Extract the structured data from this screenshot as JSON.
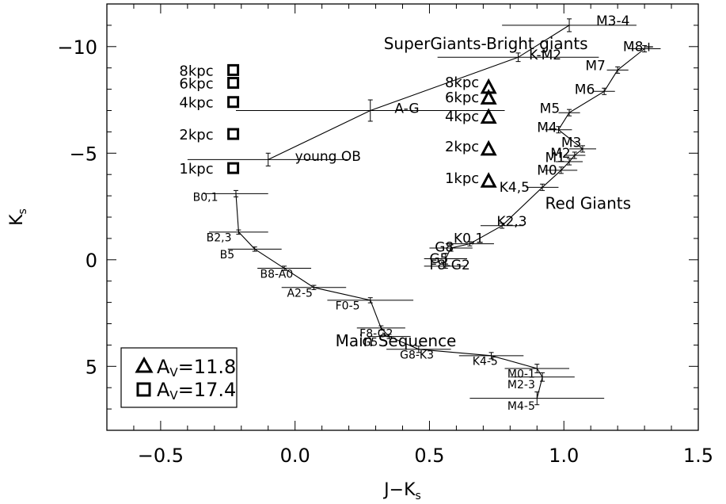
{
  "chart_data": {
    "type": "scatter",
    "xlabel_main": "J−K",
    "xlabel_sub": "s",
    "ylabel_main": "K",
    "ylabel_sub": "s",
    "xlim": [
      -0.7,
      1.5
    ],
    "ylim": [
      8.0,
      -12.0
    ],
    "x_ticks": [
      {
        "v": -0.5,
        "t": "−0.5"
      },
      {
        "v": 0.0,
        "t": "0.0"
      },
      {
        "v": 0.5,
        "t": "0.5"
      },
      {
        "v": 1.0,
        "t": "1.0"
      },
      {
        "v": 1.5,
        "t": "1.5"
      }
    ],
    "y_ticks": [
      {
        "v": -10,
        "t": "−10"
      },
      {
        "v": -5,
        "t": "−5"
      },
      {
        "v": 0,
        "t": "0"
      },
      {
        "v": 5,
        "t": "5"
      }
    ],
    "series": [
      {
        "name": "Main Sequence",
        "label_pos": [
          0.15,
          3.8
        ],
        "points": [
          {
            "label": "B0,1",
            "x": -0.22,
            "y": -3.1,
            "xerr": 0.12,
            "yerr": 0.15,
            "lx": -0.38,
            "ly": -2.95
          },
          {
            "label": "B2,3",
            "x": -0.21,
            "y": -1.3,
            "xerr": 0.11,
            "yerr": 0.1,
            "lx": -0.33,
            "ly": -1.05
          },
          {
            "label": "B5",
            "x": -0.15,
            "y": -0.5,
            "xerr": 0.1,
            "yerr": 0.1,
            "lx": -0.28,
            "ly": -0.25
          },
          {
            "label": "B8-A0",
            "x": -0.04,
            "y": 0.4,
            "xerr": 0.1,
            "yerr": 0.1,
            "lx": -0.13,
            "ly": 0.65
          },
          {
            "label": "A2-5",
            "x": 0.07,
            "y": 1.3,
            "xerr": 0.12,
            "yerr": 0.1,
            "lx": -0.03,
            "ly": 1.55
          },
          {
            "label": "F0-5",
            "x": 0.28,
            "y": 1.9,
            "xerr": 0.16,
            "yerr": 0.12,
            "lx": 0.15,
            "ly": 2.15
          },
          {
            "label": "F8-G2",
            "x": 0.32,
            "y": 3.2,
            "xerr": 0.09,
            "yerr": 0.1,
            "lx": 0.24,
            "ly": 3.45
          },
          {
            "label": "G5",
            "x": 0.35,
            "y": 3.6,
            "xerr": 0.08,
            "yerr": 0.1,
            "lx": 0.25,
            "ly": 3.85
          },
          {
            "label": "G8-K3",
            "x": 0.46,
            "y": 4.2,
            "xerr": 0.12,
            "yerr": 0.15,
            "lx": 0.39,
            "ly": 4.45
          },
          {
            "label": "K4-5",
            "x": 0.73,
            "y": 4.5,
            "xerr": 0.12,
            "yerr": 0.15,
            "lx": 0.66,
            "ly": 4.75
          },
          {
            "label": "M0-1",
            "x": 0.9,
            "y": 5.1,
            "xerr": 0.12,
            "yerr": 0.2,
            "lx": 0.79,
            "ly": 5.35
          },
          {
            "label": "M2-3",
            "x": 0.92,
            "y": 5.5,
            "xerr": 0.12,
            "yerr": 0.2,
            "lx": 0.79,
            "ly": 5.85
          },
          {
            "label": "M4-5",
            "x": 0.9,
            "y": 6.5,
            "xerr": 0.25,
            "yerr": 0.3,
            "lx": 0.79,
            "ly": 6.85
          }
        ]
      },
      {
        "name": "Red Giants",
        "label_pos": [
          0.93,
          -2.65
        ],
        "points": [
          {
            "label": "F8-G2",
            "x": 0.56,
            "y": 0.3,
            "xerr": 0.08,
            "yerr": 0.1,
            "lx": 0.5,
            "ly": 0.2
          },
          {
            "label": "G5",
            "x": 0.56,
            "y": -0.05,
            "xerr": 0.08,
            "yerr": 0.25,
            "lx": 0.5,
            "ly": -0.1
          },
          {
            "label": "G8",
            "x": 0.58,
            "y": -0.55,
            "xerr": 0.08,
            "yerr": 0.15,
            "lx": 0.52,
            "ly": -0.65
          },
          {
            "label": "K0,1",
            "x": 0.65,
            "y": -0.75,
            "xerr": 0.09,
            "yerr": 0.1,
            "lx": 0.59,
            "ly": -1.05
          },
          {
            "label": "K2,3",
            "x": 0.77,
            "y": -1.6,
            "xerr": 0.08,
            "yerr": 0.12,
            "lx": 0.75,
            "ly": -1.85
          },
          {
            "label": "K4,5",
            "x": 0.92,
            "y": -3.4,
            "xerr": 0.06,
            "yerr": 0.15,
            "lx": 0.76,
            "ly": -3.45
          },
          {
            "label": "M0",
            "x": 0.99,
            "y": -4.2,
            "xerr": 0.06,
            "yerr": 0.15,
            "lx": 0.9,
            "ly": -4.25
          },
          {
            "label": "M1",
            "x": 1.02,
            "y": -4.6,
            "xerr": 0.05,
            "yerr": 0.15,
            "lx": 0.93,
            "ly": -4.85
          },
          {
            "label": "M2",
            "x": 1.04,
            "y": -4.9,
            "xerr": 0.04,
            "yerr": 0.15,
            "lx": 0.95,
            "ly": -5.05
          },
          {
            "label": "M3",
            "x": 1.07,
            "y": -5.2,
            "xerr": 0.05,
            "yerr": 0.15,
            "lx": 0.99,
            "ly": -5.55
          },
          {
            "label": "M4",
            "x": 0.98,
            "y": -6.1,
            "xerr": 0.05,
            "yerr": 0.15,
            "lx": 0.9,
            "ly": -6.25
          },
          {
            "label": "M5",
            "x": 1.02,
            "y": -6.9,
            "xerr": 0.04,
            "yerr": 0.15,
            "lx": 0.91,
            "ly": -7.15
          },
          {
            "label": "M6",
            "x": 1.15,
            "y": -7.9,
            "xerr": 0.04,
            "yerr": 0.15,
            "lx": 1.04,
            "ly": -8.05
          },
          {
            "label": "M7",
            "x": 1.2,
            "y": -8.9,
            "xerr": 0.04,
            "yerr": 0.15,
            "lx": 1.08,
            "ly": -9.15
          },
          {
            "label": "M8+",
            "x": 1.3,
            "y": -9.9,
            "xerr": 0.06,
            "yerr": 0.15,
            "lx": 1.22,
            "ly": -10.05
          }
        ]
      },
      {
        "name": "SuperGiants-Bright giants",
        "label_pos": [
          0.33,
          -10.15
        ],
        "points": [
          {
            "label": "young OB",
            "x": -0.1,
            "y": -4.7,
            "xerr": 0.3,
            "yerr": 0.3,
            "lx": 0.0,
            "ly": -4.9
          },
          {
            "label": "A-G",
            "x": 0.28,
            "y": -7.0,
            "xerr": 0.5,
            "yerr": 0.5,
            "lx": 0.37,
            "ly": -7.15
          },
          {
            "label": "K-M2",
            "x": 0.83,
            "y": -9.5,
            "xerr": 0.3,
            "yerr": 0.2,
            "lx": 0.87,
            "ly": -9.65
          },
          {
            "label": "M3-4",
            "x": 1.02,
            "y": -11.0,
            "xerr": 0.25,
            "yerr": 0.3,
            "lx": 1.12,
            "ly": -11.25
          }
        ]
      }
    ],
    "distance_markers": [
      {
        "series": "Av=11.8",
        "symbol": "triangle",
        "x": 0.72,
        "points": [
          {
            "label": "1kpc",
            "y": -3.7,
            "lx": 0.72,
            "ly": -3.85
          },
          {
            "label": "2kpc",
            "y": -5.2,
            "lx": 0.72,
            "ly": -5.35
          },
          {
            "label": "4kpc",
            "y": -6.7,
            "lx": 0.72,
            "ly": -6.75
          },
          {
            "label": "6kpc",
            "y": -7.6,
            "lx": 0.72,
            "ly": -7.65
          },
          {
            "label": "8kpc",
            "y": -8.1,
            "lx": 0.72,
            "ly": -8.35
          }
        ]
      },
      {
        "series": "Av=17.4",
        "symbol": "square",
        "x": -0.23,
        "points": [
          {
            "label": "1kpc",
            "y": -4.3,
            "lx": -0.28,
            "ly": -4.3
          },
          {
            "label": "2kpc",
            "y": -5.9,
            "lx": -0.28,
            "ly": -5.9
          },
          {
            "label": "4kpc",
            "y": -7.4,
            "lx": -0.28,
            "ly": -7.4
          },
          {
            "label": "6kpc",
            "y": -8.3,
            "lx": -0.28,
            "ly": -8.3
          },
          {
            "label": "8kpc",
            "y": -8.9,
            "lx": -0.28,
            "ly": -8.9
          }
        ]
      }
    ],
    "legend": {
      "position": "bottom-left",
      "entries": [
        {
          "symbol": "triangle",
          "prefix": "A",
          "sub": "V",
          "value": "=11.8"
        },
        {
          "symbol": "square",
          "prefix": "A",
          "sub": "V",
          "value": "=17.4"
        }
      ]
    }
  }
}
